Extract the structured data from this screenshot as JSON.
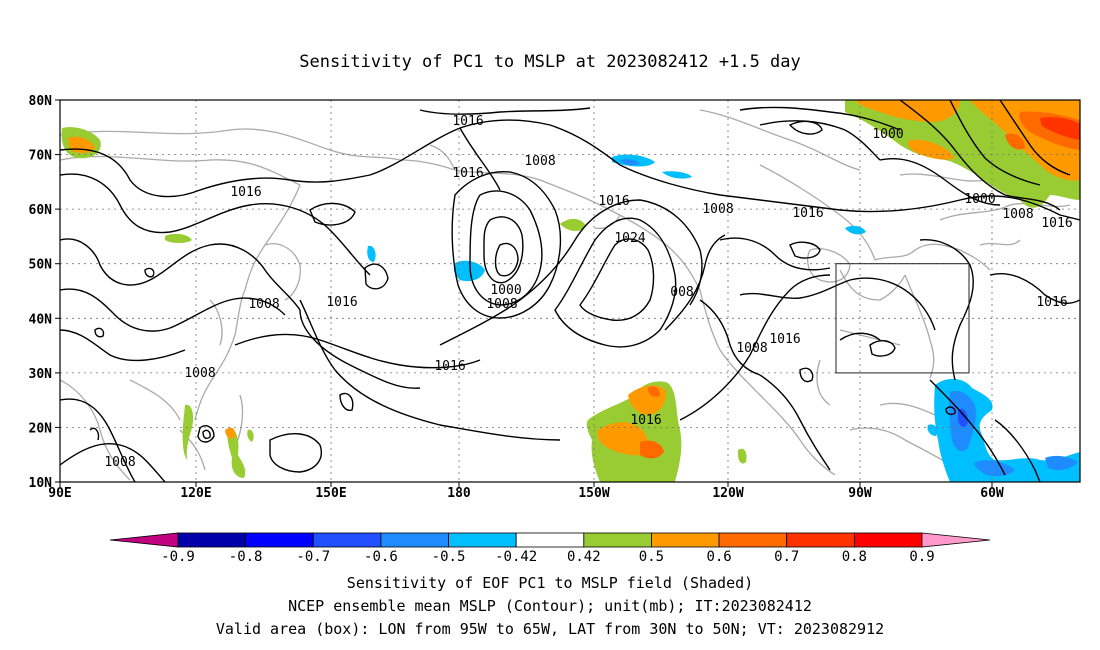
{
  "map": {
    "title": "Sensitivity of PC1 to MSLP at 2023082412 +1.5 day",
    "lat_labels": [
      "80N",
      "70N",
      "60N",
      "50N",
      "40N",
      "30N",
      "20N",
      "10N"
    ],
    "lon_labels": [
      "90E",
      "120E",
      "150E",
      "180",
      "150W",
      "120W",
      "90W",
      "60W"
    ],
    "extent": {
      "lon_start": "90E",
      "lon_end": "40W",
      "lat_start": "10N",
      "lat_end": "80N"
    },
    "grid": "dotted",
    "valid_box": {
      "lon": [
        "95W",
        "65W"
      ],
      "lat": [
        "30N",
        "50N"
      ]
    },
    "contour_labels": [
      {
        "id": "c1",
        "text": "1016"
      },
      {
        "id": "c2",
        "text": "1008"
      },
      {
        "id": "c3",
        "text": "1016"
      },
      {
        "id": "c4",
        "text": "1016"
      },
      {
        "id": "c5",
        "text": "1024"
      },
      {
        "id": "c6",
        "text": "1008"
      },
      {
        "id": "c7",
        "text": "1016"
      },
      {
        "id": "c8",
        "text": "1000"
      },
      {
        "id": "c9",
        "text": "1000"
      },
      {
        "id": "c10",
        "text": "1008"
      },
      {
        "id": "c11",
        "text": "1016"
      },
      {
        "id": "c12",
        "text": "1016"
      },
      {
        "id": "c13",
        "text": "1016"
      },
      {
        "id": "c14",
        "text": "1016"
      },
      {
        "id": "c15",
        "text": "1008"
      },
      {
        "id": "c16",
        "text": "1016"
      },
      {
        "id": "c17",
        "text": "1008"
      },
      {
        "id": "c18",
        "text": "1016"
      },
      {
        "id": "c19",
        "text": "1008"
      },
      {
        "id": "c20",
        "text": "1008"
      },
      {
        "id": "c21",
        "text": "1000"
      },
      {
        "id": "c22",
        "text": "1008"
      },
      {
        "id": "c23",
        "text": "1016"
      },
      {
        "id": "c24",
        "text": "008"
      }
    ]
  },
  "colorbar": {
    "labels": [
      "-0.9",
      "-0.8",
      "-0.7",
      "-0.6",
      "-0.5",
      "-0.42",
      "0.42",
      "0.5",
      "0.6",
      "0.7",
      "0.8",
      "0.9"
    ],
    "colors": [
      "#c0007f",
      "#0000aa",
      "#0000ff",
      "#2050ff",
      "#1e8cff",
      "#00bfff",
      "#ffffff",
      "#99cc33",
      "#ff9900",
      "#ff6a00",
      "#ff3300",
      "#ff0000",
      "#ff99cc"
    ]
  },
  "caption": {
    "line1": "Sensitivity of EOF PC1 to MSLP field (Shaded)",
    "line2": "NCEP ensemble mean MSLP (Contour); unit(mb); IT:2023082412",
    "line3": "Valid area (box): LON from 95W to 65W, LAT from 30N to 50N; VT: 2023082912"
  }
}
